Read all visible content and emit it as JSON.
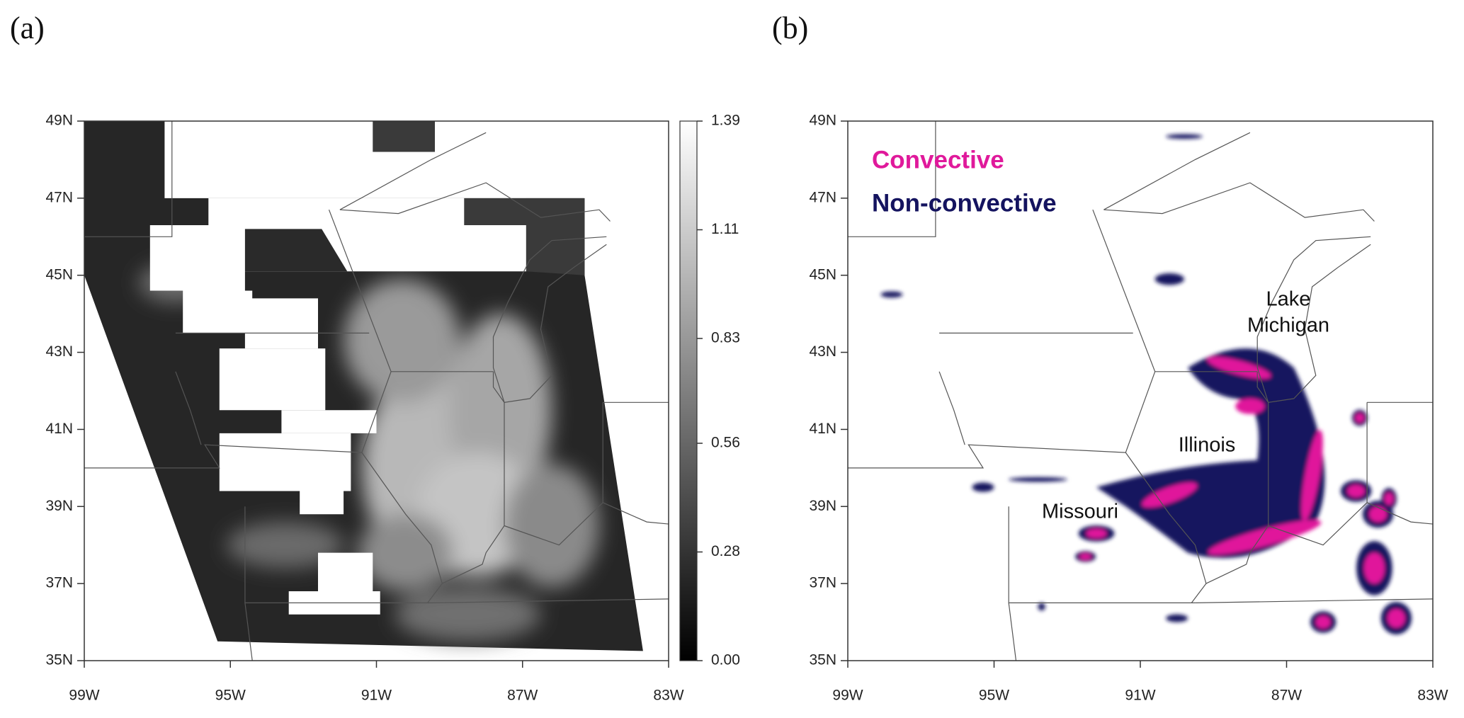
{
  "panels": [
    {
      "label": "(a)",
      "xlim": [
        -99,
        -83
      ],
      "ylim": [
        35,
        49
      ],
      "xticks": [
        {
          "value": -99,
          "label": "99W"
        },
        {
          "value": -95,
          "label": "95W"
        },
        {
          "value": -91,
          "label": "91W"
        },
        {
          "value": -87,
          "label": "87W"
        },
        {
          "value": -83,
          "label": "83W"
        }
      ],
      "yticks": [
        {
          "value": 35,
          "label": "35N"
        },
        {
          "value": 37,
          "label": "37N"
        },
        {
          "value": 39,
          "label": "39N"
        },
        {
          "value": 41,
          "label": "41N"
        },
        {
          "value": 43,
          "label": "43N"
        },
        {
          "value": 45,
          "label": "45N"
        },
        {
          "value": 47,
          "label": "47N"
        },
        {
          "value": 49,
          "label": "49N"
        }
      ],
      "colorbar": {
        "lim": [
          0,
          1.39
        ],
        "ticks": [
          {
            "value": 0,
            "label": "0.00"
          },
          {
            "value": 0.28,
            "label": "0.28"
          },
          {
            "value": 0.56,
            "label": "0.56"
          },
          {
            "value": 0.83,
            "label": "0.83"
          },
          {
            "value": 1.11,
            "label": "1.11"
          },
          {
            "value": 1.39,
            "label": "1.39"
          }
        ]
      }
    },
    {
      "label": "(b)",
      "xlim": [
        -99,
        -83
      ],
      "ylim": [
        35,
        49
      ],
      "xticks": [
        {
          "value": -99,
          "label": "99W"
        },
        {
          "value": -95,
          "label": "95W"
        },
        {
          "value": -91,
          "label": "91W"
        },
        {
          "value": -87,
          "label": "87W"
        },
        {
          "value": -83,
          "label": "83W"
        }
      ],
      "yticks": [
        {
          "value": 35,
          "label": "35N"
        },
        {
          "value": 37,
          "label": "37N"
        },
        {
          "value": 39,
          "label": "39N"
        },
        {
          "value": 41,
          "label": "41N"
        },
        {
          "value": 43,
          "label": "43N"
        },
        {
          "value": 45,
          "label": "45N"
        },
        {
          "value": 47,
          "label": "47N"
        },
        {
          "value": 49,
          "label": "49N"
        }
      ],
      "legend": [
        {
          "name": "Convective",
          "color": "#e0199b"
        },
        {
          "name": "Non-convective",
          "color": "#14135f"
        }
      ],
      "annotations": [
        {
          "lines": [
            "Lake",
            "Michigan"
          ]
        },
        {
          "lines": [
            "Illinois"
          ]
        },
        {
          "lines": [
            "Missouri"
          ]
        }
      ]
    }
  ]
}
